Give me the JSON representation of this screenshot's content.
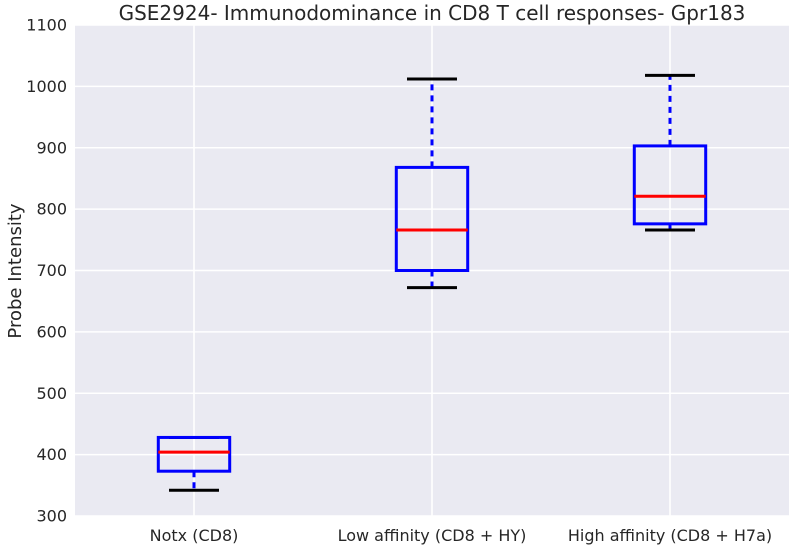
{
  "chart_data": {
    "type": "box",
    "title": "GSE2924- Immunodominance in CD8 T cell responses- Gpr183",
    "xlabel": "",
    "ylabel": "Probe Intensity",
    "ylim": [
      300,
      1100
    ],
    "yticks": [
      "300",
      "400",
      "500",
      "600",
      "700",
      "800",
      "900",
      "1000",
      "1100"
    ],
    "grid": true,
    "categories": [
      "Notx (CD8)",
      "Low affinity (CD8 + HY)",
      "High affinity (CD8 + H7a)"
    ],
    "boxes": [
      {
        "whisker_low": 342,
        "q1": 373,
        "median": 404,
        "q3": 428,
        "whisker_high": 428
      },
      {
        "whisker_low": 672,
        "q1": 700,
        "median": 766,
        "q3": 868,
        "whisker_high": 1012
      },
      {
        "whisker_low": 766,
        "q1": 776,
        "median": 821,
        "q3": 903,
        "whisker_high": 1018
      }
    ],
    "colors": {
      "background": "#EAEAF2",
      "grid": "#FFFFFF",
      "box": "#0000FF",
      "whisker": "#0000FF",
      "cap": "#000000",
      "median": "#FF0000"
    }
  }
}
